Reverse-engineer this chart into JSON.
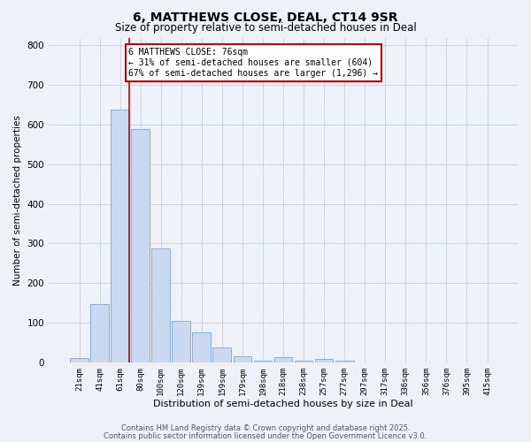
{
  "title": "6, MATTHEWS CLOSE, DEAL, CT14 9SR",
  "subtitle": "Size of property relative to semi-detached houses in Deal",
  "xlabel": "Distribution of semi-detached houses by size in Deal",
  "ylabel": "Number of semi-detached properties",
  "bar_labels": [
    "21sqm",
    "41sqm",
    "61sqm",
    "80sqm",
    "100sqm",
    "120sqm",
    "139sqm",
    "159sqm",
    "179sqm",
    "198sqm",
    "218sqm",
    "238sqm",
    "257sqm",
    "277sqm",
    "297sqm",
    "317sqm",
    "336sqm",
    "356sqm",
    "376sqm",
    "395sqm",
    "415sqm"
  ],
  "bar_values": [
    10,
    148,
    638,
    590,
    288,
    105,
    75,
    37,
    15,
    3,
    13,
    3,
    8,
    3,
    0,
    0,
    0,
    0,
    0,
    0,
    0
  ],
  "bar_color": "#c9d9f0",
  "bar_edge_color": "#7aa8d4",
  "vline_color": "#cc0000",
  "annotation_text": "6 MATTHEWS CLOSE: 76sqm\n← 31% of semi-detached houses are smaller (604)\n67% of semi-detached houses are larger (1,296) →",
  "annotation_box_color": "#ffffff",
  "annotation_box_edge_color": "#cc0000",
  "ylim": [
    0,
    820
  ],
  "yticks": [
    0,
    100,
    200,
    300,
    400,
    500,
    600,
    700,
    800
  ],
  "grid_color": "#c8d0dc",
  "bg_color": "#eef2f8",
  "footer_line1": "Contains HM Land Registry data © Crown copyright and database right 2025.",
  "footer_line2": "Contains public sector information licensed under the Open Government Licence v3.0."
}
